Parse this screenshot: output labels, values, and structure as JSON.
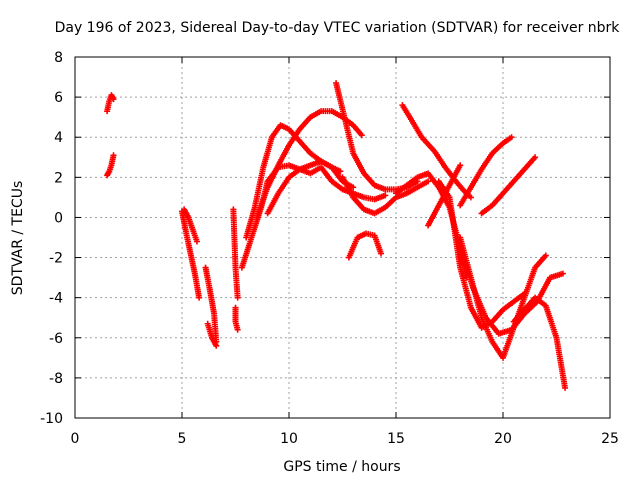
{
  "chart_data": {
    "type": "scatter",
    "title": "Day 196 of 2023, Sidereal Day-to-day VTEC variation (SDTVAR) for receiver nbrk",
    "xlabel": "GPS time / hours",
    "ylabel": "SDTVAR / TECUs",
    "xlim": [
      0,
      25
    ],
    "ylim": [
      -10,
      8
    ],
    "xticks": [
      "0",
      "5",
      "10",
      "15",
      "20",
      "25"
    ],
    "yticks": [
      "-10",
      "-8",
      "-6",
      "-4",
      "-2",
      "0",
      "2",
      "4",
      "6",
      "8"
    ],
    "grid": true,
    "marker": "+",
    "color": "#ff0000",
    "series": [
      {
        "name": "s1",
        "x": [
          1.5,
          1.6,
          1.7,
          1.8
        ],
        "y": [
          5.3,
          5.8,
          6.1,
          5.9
        ]
      },
      {
        "name": "s2",
        "x": [
          1.5,
          1.6,
          1.7,
          1.8
        ],
        "y": [
          2.1,
          2.3,
          2.6,
          3.1
        ]
      },
      {
        "name": "s3",
        "x": [
          5.0,
          5.2,
          5.4,
          5.6,
          5.8
        ],
        "y": [
          0.3,
          -0.8,
          -1.8,
          -2.8,
          -4.0
        ]
      },
      {
        "name": "s4",
        "x": [
          5.1,
          5.3,
          5.5,
          5.7
        ],
        "y": [
          0.4,
          0.0,
          -0.6,
          -1.2
        ]
      },
      {
        "name": "s5",
        "x": [
          6.1,
          6.3,
          6.5,
          6.6
        ],
        "y": [
          -2.5,
          -3.6,
          -4.8,
          -6.2
        ]
      },
      {
        "name": "s6",
        "x": [
          6.2,
          6.4,
          6.6
        ],
        "y": [
          -5.3,
          -6.0,
          -6.4
        ]
      },
      {
        "name": "s7",
        "x": [
          7.4,
          7.5,
          7.6
        ],
        "y": [
          0.4,
          -2.5,
          -4.0
        ]
      },
      {
        "name": "s8",
        "x": [
          7.5,
          7.5,
          7.6
        ],
        "y": [
          -4.5,
          -5.2,
          -5.6
        ]
      },
      {
        "name": "s9",
        "x": [
          7.8,
          8.1,
          8.4,
          8.7,
          9.0,
          9.5,
          10.0,
          10.5,
          11.0,
          11.5,
          12.0,
          12.5,
          13.0,
          13.5,
          14.0,
          14.5
        ],
        "y": [
          -2.5,
          -1.5,
          -0.5,
          0.5,
          1.8,
          2.5,
          2.6,
          2.4,
          2.2,
          2.5,
          1.8,
          1.4,
          1.2,
          1.0,
          0.9,
          1.1
        ]
      },
      {
        "name": "s10",
        "x": [
          8.0,
          8.4,
          8.8,
          9.2,
          9.6,
          10.0,
          10.5,
          11.0,
          11.5,
          12.0,
          12.4
        ],
        "y": [
          -1.0,
          0.5,
          2.5,
          4.0,
          4.6,
          4.4,
          3.8,
          3.2,
          2.8,
          2.5,
          2.3
        ]
      },
      {
        "name": "s11",
        "x": [
          8.5,
          9.0,
          9.5,
          10.0,
          10.5,
          11.0,
          11.5,
          12.0,
          12.5,
          13.0,
          13.4
        ],
        "y": [
          0.0,
          1.5,
          2.6,
          3.6,
          4.4,
          5.0,
          5.3,
          5.3,
          5.0,
          4.6,
          4.1
        ]
      },
      {
        "name": "s12",
        "x": [
          9.0,
          9.5,
          10.0,
          10.5,
          11.0,
          11.5,
          12.0,
          12.5,
          13.0
        ],
        "y": [
          0.2,
          1.2,
          2.0,
          2.4,
          2.6,
          2.8,
          2.5,
          1.8,
          1.5
        ]
      },
      {
        "name": "s13",
        "x": [
          12.2,
          12.5,
          13.0,
          13.5,
          14.0,
          14.5,
          15.0,
          15.5,
          16.0
        ],
        "y": [
          6.7,
          5.4,
          3.2,
          2.2,
          1.6,
          1.4,
          1.4,
          1.5,
          1.8
        ]
      },
      {
        "name": "s14",
        "x": [
          12.8,
          13.2,
          13.6,
          14.0,
          14.3
        ],
        "y": [
          -2.0,
          -1.0,
          -0.8,
          -0.9,
          -1.8
        ]
      },
      {
        "name": "s15",
        "x": [
          12.5,
          13.0,
          13.5,
          14.0,
          14.5,
          15.0,
          15.5,
          16.0,
          16.5
        ],
        "y": [
          2.0,
          1.0,
          0.4,
          0.2,
          0.5,
          1.0,
          1.2,
          1.5,
          1.8
        ]
      },
      {
        "name": "s16",
        "x": [
          15.3,
          15.7,
          16.2,
          16.8,
          17.3,
          17.8,
          18.2,
          18.5
        ],
        "y": [
          5.6,
          4.9,
          4.0,
          3.3,
          2.5,
          1.8,
          1.3,
          1.0
        ]
      },
      {
        "name": "s17",
        "x": [
          15.0,
          15.5,
          16.0,
          16.5,
          17.0,
          17.5,
          18.0,
          18.3
        ],
        "y": [
          1.2,
          1.6,
          2.0,
          2.2,
          1.5,
          0.5,
          -1.5,
          -3.0
        ]
      },
      {
        "name": "s18",
        "x": [
          16.5,
          17.0,
          17.5,
          18.0
        ],
        "y": [
          -0.4,
          0.6,
          1.6,
          2.6
        ]
      },
      {
        "name": "s19",
        "x": [
          17.0,
          17.5,
          18.0,
          18.5,
          19.0,
          19.5,
          20.0,
          20.5,
          21.0
        ],
        "y": [
          1.8,
          1.0,
          -2.5,
          -4.5,
          -5.5,
          -5.2,
          -4.6,
          -4.2,
          -3.8
        ]
      },
      {
        "name": "s20",
        "x": [
          18.0,
          18.5,
          19.0,
          19.5,
          20.0,
          20.5,
          21.0,
          21.5,
          22.0
        ],
        "y": [
          -1.0,
          -3.0,
          -5.0,
          -6.2,
          -7.0,
          -5.5,
          -4.0,
          -2.5,
          -1.9
        ]
      },
      {
        "name": "s21",
        "x": [
          18.0,
          18.6,
          19.2,
          19.8,
          20.4,
          21.0,
          21.6,
          22.2,
          22.8
        ],
        "y": [
          -1.5,
          -3.5,
          -5.0,
          -5.8,
          -5.6,
          -4.8,
          -4.2,
          -3.0,
          -2.8
        ]
      },
      {
        "name": "s22",
        "x": [
          18.0,
          18.5,
          19.0,
          19.5,
          20.0,
          20.4
        ],
        "y": [
          0.6,
          1.5,
          2.4,
          3.2,
          3.7,
          4.0
        ]
      },
      {
        "name": "s23",
        "x": [
          19.0,
          19.5,
          20.0,
          20.5,
          21.0,
          21.5
        ],
        "y": [
          0.2,
          0.6,
          1.2,
          1.8,
          2.4,
          3.0
        ]
      },
      {
        "name": "s24",
        "x": [
          20.5,
          21.0,
          21.5,
          22.0,
          22.5,
          22.9
        ],
        "y": [
          -5.2,
          -4.6,
          -4.0,
          -4.4,
          -6.0,
          -8.5
        ]
      }
    ]
  }
}
